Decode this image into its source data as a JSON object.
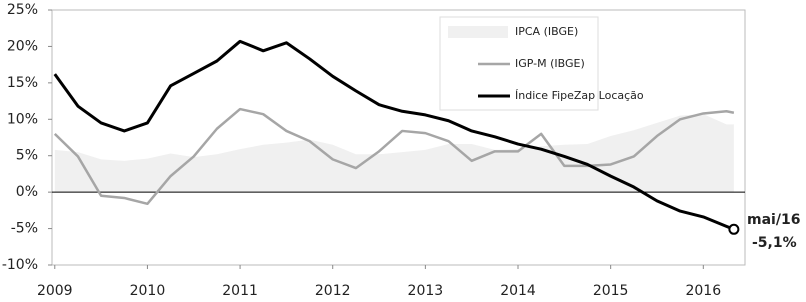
{
  "chart_data": {
    "type": "line",
    "x": [
      2009,
      2009.25,
      2009.5,
      2009.75,
      2010,
      2010.25,
      2010.5,
      2010.75,
      2011,
      2011.25,
      2011.5,
      2011.75,
      2012,
      2012.25,
      2012.5,
      2012.75,
      2013,
      2013.25,
      2013.5,
      2013.75,
      2014,
      2014.25,
      2014.5,
      2014.75,
      2015,
      2015.25,
      2015.5,
      2015.75,
      2016,
      2016.25,
      2016.33
    ],
    "series": [
      {
        "name": "IPCA (IBGE)",
        "style": "area",
        "color": "#f0f0f0",
        "values": [
          5.8,
          5.5,
          4.5,
          4.3,
          4.6,
          5.3,
          4.8,
          5.2,
          5.9,
          6.5,
          6.8,
          7.2,
          6.5,
          5.2,
          5.2,
          5.5,
          5.8,
          6.6,
          6.6,
          5.8,
          5.9,
          6.3,
          6.5,
          6.6,
          7.7,
          8.5,
          9.5,
          10.5,
          10.7,
          9.3,
          9.3
        ]
      },
      {
        "name": "IGP-M (IBGE)",
        "style": "line",
        "color": "#a6a6a6",
        "values": [
          8,
          4.9,
          -0.5,
          -0.8,
          -1.6,
          2.2,
          4.9,
          8.7,
          11.4,
          10.7,
          8.4,
          7,
          4.5,
          3.3,
          5.6,
          8.4,
          8.1,
          7,
          4.3,
          5.6,
          5.6,
          8,
          3.6,
          3.6,
          3.8,
          4.9,
          7.7,
          10,
          10.8,
          11.1,
          10.9
        ]
      },
      {
        "name": "Índice FipeZap Locação",
        "style": "line",
        "color": "#000000",
        "values": [
          16.2,
          11.8,
          9.5,
          8.4,
          9.5,
          14.6,
          16.3,
          18,
          20.7,
          19.4,
          20.5,
          18.3,
          15.9,
          13.9,
          12,
          11.1,
          10.6,
          9.8,
          8.4,
          7.6,
          6.6,
          5.9,
          4.9,
          3.8,
          2.2,
          0.7,
          -1.2,
          -2.6,
          -3.4,
          -4.7,
          -5.1
        ]
      }
    ],
    "end_label": {
      "date": "mai/16",
      "value": "-5,1%"
    },
    "xlim": [
      2008.97,
      2016.45
    ],
    "xticks": [
      2009,
      2010,
      2011,
      2012,
      2013,
      2014,
      2015,
      2016
    ],
    "ylim": [
      -10,
      25
    ],
    "yticks": [
      {
        "value": -10,
        "label": "-10%"
      },
      {
        "value": -5,
        "label": "-5%"
      },
      {
        "value": 0,
        "label": "0%"
      },
      {
        "value": 5,
        "label": "5%"
      },
      {
        "value": 10,
        "label": "10%"
      },
      {
        "value": 15,
        "label": "15%"
      },
      {
        "value": 20,
        "label": "20%"
      },
      {
        "value": 25,
        "label": "25%"
      }
    ],
    "legend": "top-right"
  }
}
